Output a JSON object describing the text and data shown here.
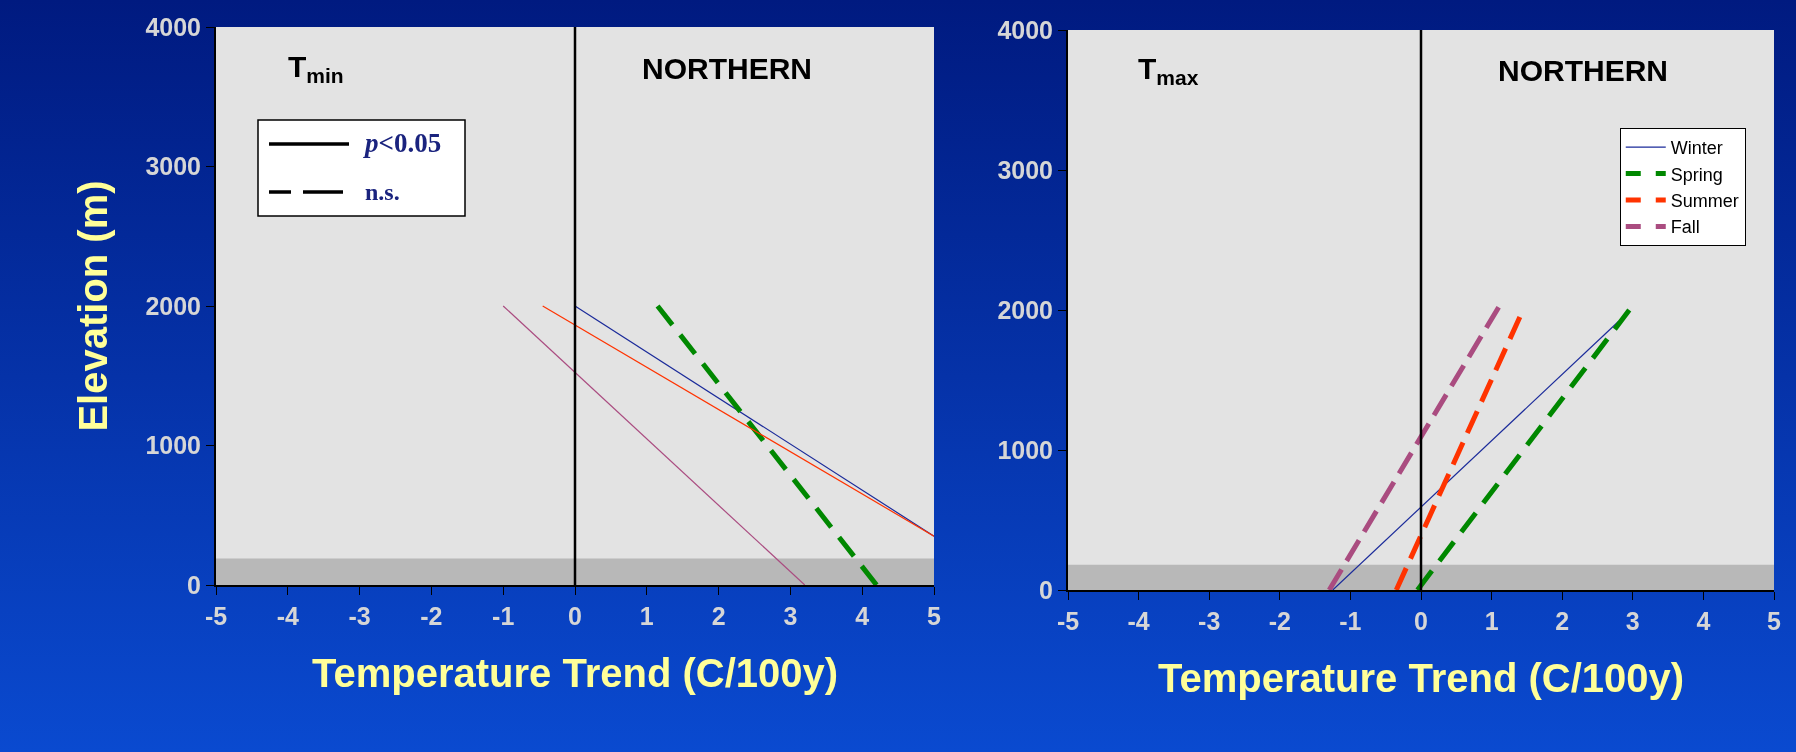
{
  "chart_data": [
    {
      "type": "line",
      "xlabel": "Temperature Trend (C/100y)",
      "ylabel": "Elevation (m)",
      "xlim": [
        -5,
        5
      ],
      "xticks": [
        -5,
        -4,
        -3,
        -2,
        -1,
        0,
        1,
        2,
        3,
        4,
        5
      ],
      "ylim": [
        0,
        4000
      ],
      "yticks": [
        0,
        1000,
        2000,
        3000,
        4000
      ],
      "grid": false,
      "legend": false,
      "marker": "none",
      "annotations": [
        "T$_{min}$",
        "NORTHERN",
        "p<0.05",
        "n.s."
      ],
      "ref_lines": [
        {
          "axis": "x",
          "value": 0,
          "color": "#000000"
        }
      ],
      "bands": [
        {
          "axis": "y",
          "from": 0,
          "to": 190,
          "color": "#b8b8b8"
        }
      ],
      "series": [
        {
          "color": "#1a2a9a",
          "line_style": "solid",
          "x": [
            0,
            5
          ],
          "values": [
            2000,
            350
          ]
        },
        {
          "color": "#008800",
          "line_style": "dashed",
          "x": [
            1.15,
            4.2
          ],
          "values": [
            2000,
            0
          ]
        },
        {
          "color": "#ff3300",
          "line_style": "solid",
          "x": [
            -0.45,
            5
          ],
          "values": [
            2000,
            350
          ]
        },
        {
          "color": "#aa4c80",
          "line_style": "solid",
          "x": [
            -1,
            3.2
          ],
          "values": [
            2000,
            0
          ]
        }
      ]
    },
    {
      "type": "line",
      "xlabel": "Temperature Trend (C/100y)",
      "xlim": [
        -5,
        5
      ],
      "xticks": [
        -5,
        -4,
        -3,
        -2,
        -1,
        0,
        1,
        2,
        3,
        4,
        5
      ],
      "ylim": [
        0,
        4000
      ],
      "yticks": [
        0,
        1000,
        2000,
        3000,
        4000
      ],
      "grid": false,
      "legend": "top right",
      "marker": "none",
      "annotations": [
        "T$_{max}$",
        "NORTHERN"
      ],
      "ref_lines": [
        {
          "axis": "x",
          "value": 0,
          "color": "#000000"
        }
      ],
      "bands": [
        {
          "axis": "y",
          "from": 0,
          "to": 180,
          "color": "#b8b8b8"
        }
      ],
      "series": [
        {
          "name": "Winter",
          "color": "#1a2a9a",
          "line_style": "solid",
          "x": [
            -1.25,
            2.8
          ],
          "values": [
            0,
            1920
          ]
        },
        {
          "name": "Spring",
          "color": "#008800",
          "line_style": "dashed",
          "x": [
            -0.05,
            2.95
          ],
          "values": [
            0,
            2000
          ]
        },
        {
          "name": "Summer",
          "color": "#ff3300",
          "line_style": "dashed",
          "x": [
            -0.35,
            1.4
          ],
          "values": [
            0,
            1950
          ]
        },
        {
          "name": "Fall",
          "color": "#aa4c80",
          "line_style": "dashed",
          "x": [
            -1.3,
            1.1
          ],
          "values": [
            0,
            2020
          ]
        }
      ]
    }
  ]
}
